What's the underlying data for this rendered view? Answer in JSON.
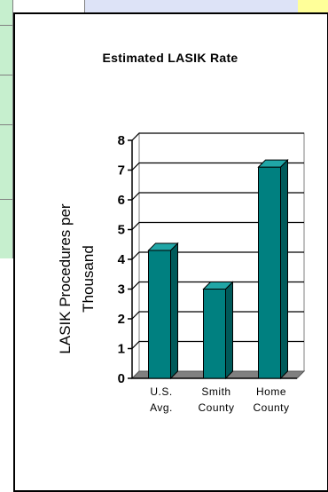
{
  "chart_data": {
    "type": "bar",
    "title": "Estimated LASIK Rate",
    "ylabel": [
      "LASIK Procedures per",
      "Thousand"
    ],
    "xlabel": "",
    "categories": [
      [
        "U.S.",
        "Avg."
      ],
      [
        "Smith",
        "County"
      ],
      [
        "Home",
        "County"
      ]
    ],
    "values": [
      4.3,
      3.0,
      7.1
    ],
    "ylim": [
      0,
      8
    ],
    "yticks": [
      "0",
      "1",
      "2",
      "3",
      "4",
      "5",
      "6",
      "7",
      "8"
    ],
    "grid": true,
    "legend": "none",
    "bar_color": "#008080",
    "bar_top_color": "#20a6a6",
    "bar_side_color": "#005a5a",
    "floor_color": "#808080"
  }
}
